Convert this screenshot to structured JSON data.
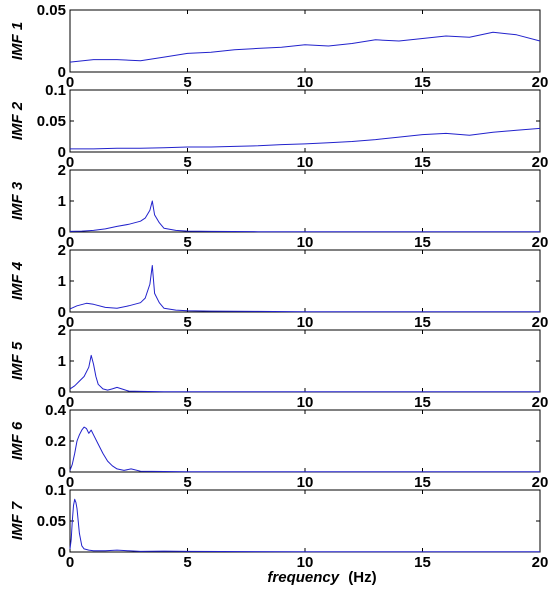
{
  "chart_data": {
    "type": "line",
    "xlabel": "frequency",
    "xlabel_unit": "(Hz)",
    "xlim": [
      0,
      20
    ],
    "xticks": [
      "0",
      "5",
      "10",
      "15",
      "20"
    ],
    "grid": false,
    "line_color": "#2222cc",
    "panels": [
      {
        "ylabel": "IMF 1",
        "ylim": [
          0,
          0.05
        ],
        "yticks": [
          "0",
          "0.05"
        ],
        "x": [
          0,
          1,
          2,
          3,
          4,
          5,
          6,
          7,
          8,
          9,
          10,
          11,
          12,
          13,
          14,
          15,
          16,
          17,
          18,
          19,
          20
        ],
        "y": [
          0.008,
          0.01,
          0.01,
          0.009,
          0.012,
          0.015,
          0.016,
          0.018,
          0.019,
          0.02,
          0.022,
          0.021,
          0.023,
          0.026,
          0.025,
          0.027,
          0.029,
          0.028,
          0.032,
          0.03,
          0.025
        ]
      },
      {
        "ylabel": "IMF 2",
        "ylim": [
          0,
          0.1
        ],
        "yticks": [
          "0",
          "0.05",
          "0.1"
        ],
        "x": [
          0,
          1,
          2,
          3,
          4,
          5,
          6,
          7,
          8,
          9,
          10,
          11,
          12,
          13,
          14,
          15,
          16,
          17,
          18,
          19,
          20
        ],
        "y": [
          0.005,
          0.005,
          0.006,
          0.006,
          0.007,
          0.008,
          0.008,
          0.009,
          0.01,
          0.012,
          0.013,
          0.015,
          0.017,
          0.02,
          0.024,
          0.028,
          0.03,
          0.027,
          0.032,
          0.035,
          0.038
        ]
      },
      {
        "ylabel": "IMF 3",
        "ylim": [
          0,
          2
        ],
        "yticks": [
          "0",
          "1",
          "2"
        ],
        "x": [
          0,
          0.5,
          1,
          1.5,
          2,
          2.5,
          3,
          3.2,
          3.4,
          3.5,
          3.6,
          3.8,
          4,
          4.5,
          5,
          6,
          8,
          10,
          12,
          15,
          20
        ],
        "y": [
          0.02,
          0.03,
          0.05,
          0.1,
          0.18,
          0.25,
          0.35,
          0.45,
          0.7,
          1.0,
          0.55,
          0.3,
          0.12,
          0.05,
          0.03,
          0.02,
          0.01,
          0.01,
          0.01,
          0.005,
          0.005
        ]
      },
      {
        "ylabel": "IMF 4",
        "ylim": [
          0,
          2
        ],
        "yticks": [
          "0",
          "1",
          "2"
        ],
        "x": [
          0,
          0.3,
          0.7,
          1,
          1.5,
          2,
          2.5,
          3,
          3.2,
          3.4,
          3.5,
          3.6,
          3.8,
          4,
          4.5,
          5,
          6,
          8,
          10,
          15,
          20
        ],
        "y": [
          0.1,
          0.2,
          0.28,
          0.25,
          0.15,
          0.12,
          0.2,
          0.3,
          0.45,
          0.9,
          1.5,
          0.6,
          0.3,
          0.12,
          0.06,
          0.04,
          0.03,
          0.02,
          0.01,
          0.005,
          0.005
        ]
      },
      {
        "ylabel": "IMF 5",
        "ylim": [
          0,
          2
        ],
        "yticks": [
          "0",
          "1",
          "2"
        ],
        "x": [
          0,
          0.2,
          0.4,
          0.6,
          0.8,
          0.9,
          1.0,
          1.1,
          1.2,
          1.4,
          1.6,
          1.8,
          2.0,
          2.2,
          2.5,
          3,
          4,
          5,
          10,
          15,
          20
        ],
        "y": [
          0.1,
          0.2,
          0.35,
          0.5,
          0.8,
          1.18,
          0.9,
          0.5,
          0.25,
          0.1,
          0.06,
          0.1,
          0.15,
          0.1,
          0.03,
          0.02,
          0.01,
          0.005,
          0.005,
          0.005,
          0.005
        ]
      },
      {
        "ylabel": "IMF 6",
        "ylim": [
          0,
          0.4
        ],
        "yticks": [
          "0",
          "0.2",
          "0.4"
        ],
        "x": [
          0,
          0.1,
          0.2,
          0.3,
          0.4,
          0.5,
          0.6,
          0.7,
          0.8,
          0.9,
          1.0,
          1.2,
          1.4,
          1.6,
          1.8,
          2.0,
          2.3,
          2.6,
          3,
          5,
          20
        ],
        "y": [
          0.01,
          0.05,
          0.12,
          0.2,
          0.24,
          0.27,
          0.29,
          0.28,
          0.25,
          0.27,
          0.24,
          0.18,
          0.12,
          0.07,
          0.04,
          0.02,
          0.01,
          0.02,
          0.005,
          0.002,
          0.002
        ]
      },
      {
        "ylabel": "IMF 7",
        "ylim": [
          0,
          0.1
        ],
        "yticks": [
          "0",
          "0.05",
          "0.1"
        ],
        "x": [
          0,
          0.05,
          0.1,
          0.15,
          0.2,
          0.25,
          0.3,
          0.35,
          0.4,
          0.5,
          0.6,
          0.8,
          1.0,
          1.5,
          2.0,
          2.5,
          3,
          4,
          5,
          10,
          20
        ],
        "y": [
          0.005,
          0.02,
          0.05,
          0.075,
          0.085,
          0.08,
          0.07,
          0.05,
          0.03,
          0.01,
          0.005,
          0.003,
          0.002,
          0.002,
          0.003,
          0.002,
          0.001,
          0.0015,
          0.001,
          0.0005,
          0.0005
        ]
      }
    ]
  }
}
